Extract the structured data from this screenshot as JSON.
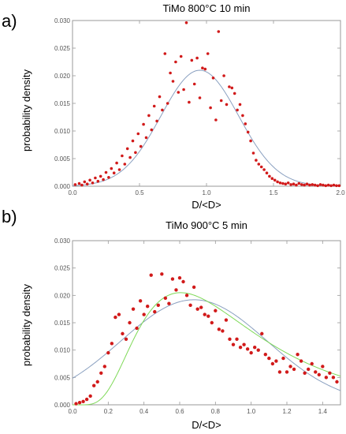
{
  "chart_data": [
    {
      "panel_label": "a)",
      "title": "TiMo 800°C 10 min",
      "type": "scatter",
      "xlabel": "D/<D>",
      "ylabel": "probability density",
      "xlim": [
        0,
        2.0
      ],
      "ylim": [
        0,
        0.03
      ],
      "xticks": [
        0.0,
        0.5,
        1.0,
        1.5,
        2.0
      ],
      "yticks": [
        0.0,
        0.005,
        0.01,
        0.015,
        0.02,
        0.025,
        0.03
      ],
      "xtick_labels": [
        "0.0",
        "0.5",
        "1.0",
        "1.5",
        "2.0"
      ],
      "ytick_labels": [
        "0.000",
        "0.005",
        "0.010",
        "0.015",
        "0.020",
        "0.025",
        "0.030"
      ],
      "series": [
        {
          "kind": "points",
          "color": "#d11a1a",
          "x": [
            0.02,
            0.05,
            0.07,
            0.09,
            0.11,
            0.13,
            0.15,
            0.17,
            0.19,
            0.21,
            0.23,
            0.25,
            0.27,
            0.29,
            0.31,
            0.33,
            0.35,
            0.37,
            0.39,
            0.41,
            0.43,
            0.45,
            0.47,
            0.49,
            0.51,
            0.53,
            0.55,
            0.57,
            0.59,
            0.61,
            0.63,
            0.65,
            0.67,
            0.69,
            0.71,
            0.73,
            0.75,
            0.77,
            0.79,
            0.81,
            0.83,
            0.85,
            0.87,
            0.89,
            0.91,
            0.93,
            0.95,
            0.97,
            0.99,
            1.01,
            1.03,
            1.05,
            1.07,
            1.09,
            1.11,
            1.13,
            1.15,
            1.17,
            1.19,
            1.21,
            1.23,
            1.25,
            1.27,
            1.29,
            1.31,
            1.33,
            1.35,
            1.37,
            1.39,
            1.41,
            1.43,
            1.45,
            1.47,
            1.49,
            1.51,
            1.53,
            1.55,
            1.57,
            1.59,
            1.61,
            1.63,
            1.65,
            1.67,
            1.69,
            1.71,
            1.73,
            1.75,
            1.77,
            1.79,
            1.81,
            1.83,
            1.85,
            1.87,
            1.89,
            1.91,
            1.93,
            1.95,
            1.97,
            1.99
          ],
          "y": [
            0.0003,
            0.0005,
            0.0002,
            0.0008,
            0.0004,
            0.0011,
            0.0006,
            0.0015,
            0.0009,
            0.0018,
            0.0012,
            0.0025,
            0.0016,
            0.0032,
            0.0024,
            0.0042,
            0.003,
            0.0055,
            0.004,
            0.0068,
            0.0052,
            0.0082,
            0.0061,
            0.0095,
            0.0072,
            0.0112,
            0.0088,
            0.0128,
            0.0102,
            0.0145,
            0.0118,
            0.0162,
            0.0138,
            0.024,
            0.015,
            0.0205,
            0.019,
            0.0225,
            0.017,
            0.0235,
            0.0175,
            0.0296,
            0.0152,
            0.0228,
            0.0185,
            0.0232,
            0.016,
            0.0214,
            0.0212,
            0.024,
            0.0142,
            0.0196,
            0.012,
            0.028,
            0.0155,
            0.02,
            0.0148,
            0.018,
            0.0178,
            0.0168,
            0.0138,
            0.0148,
            0.0128,
            0.0113,
            0.0098,
            0.0082,
            0.006,
            0.0047,
            0.004,
            0.0035,
            0.003,
            0.0024,
            0.0018,
            0.0014,
            0.0011,
            0.0008,
            0.0006,
            0.0005,
            0.0004,
            0.0006,
            0.0003,
            0.0004,
            0.0002,
            0.0005,
            0.0003,
            0.0002,
            0.0004,
            0.0002,
            0.0003,
            0.0002,
            0.0001,
            0.0003,
            0.0002,
            0.0001,
            0.0002,
            0.0001,
            0.0002,
            0.0001,
            0.0001
          ]
        },
        {
          "kind": "curve",
          "color": "#8aa0c0",
          "function": "gaussian",
          "amplitude": 0.021,
          "mean": 0.95,
          "sigma": 0.29
        }
      ]
    },
    {
      "panel_label": "b)",
      "title": "TiMo 900°C 5 min",
      "type": "scatter",
      "xlabel": "D/<D>",
      "ylabel": "probability density",
      "xlim": [
        0,
        1.5
      ],
      "ylim": [
        0,
        0.03
      ],
      "xticks": [
        0.0,
        0.2,
        0.4,
        0.6,
        0.8,
        1.0,
        1.2,
        1.4
      ],
      "yticks": [
        0.0,
        0.005,
        0.01,
        0.015,
        0.02,
        0.025,
        0.03
      ],
      "xtick_labels": [
        "0.0",
        "0.2",
        "0.4",
        "0.6",
        "0.8",
        "1.0",
        "1.2",
        "1.4"
      ],
      "ytick_labels": [
        "0.000",
        "0.005",
        "0.010",
        "0.015",
        "0.020",
        "0.025",
        "0.030"
      ],
      "series": [
        {
          "kind": "points",
          "color": "#d11a1a",
          "x": [
            0.02,
            0.04,
            0.06,
            0.08,
            0.1,
            0.12,
            0.14,
            0.16,
            0.18,
            0.2,
            0.22,
            0.24,
            0.26,
            0.28,
            0.3,
            0.32,
            0.34,
            0.36,
            0.38,
            0.4,
            0.42,
            0.44,
            0.46,
            0.48,
            0.5,
            0.52,
            0.54,
            0.56,
            0.58,
            0.6,
            0.62,
            0.64,
            0.66,
            0.68,
            0.7,
            0.72,
            0.74,
            0.76,
            0.78,
            0.8,
            0.82,
            0.84,
            0.86,
            0.88,
            0.9,
            0.92,
            0.94,
            0.96,
            0.98,
            1.0,
            1.02,
            1.04,
            1.06,
            1.08,
            1.1,
            1.12,
            1.14,
            1.16,
            1.18,
            1.2,
            1.22,
            1.24,
            1.26,
            1.28,
            1.3,
            1.32,
            1.34,
            1.36,
            1.38,
            1.4,
            1.42,
            1.44,
            1.46,
            1.48
          ],
          "y": [
            0.0002,
            0.0004,
            0.0006,
            0.001,
            0.0016,
            0.0035,
            0.0042,
            0.0058,
            0.007,
            0.0095,
            0.0112,
            0.016,
            0.0165,
            0.013,
            0.012,
            0.015,
            0.0175,
            0.014,
            0.019,
            0.0165,
            0.018,
            0.0237,
            0.017,
            0.0182,
            0.0239,
            0.0195,
            0.0185,
            0.023,
            0.021,
            0.0232,
            0.0225,
            0.02,
            0.0182,
            0.0215,
            0.0175,
            0.0178,
            0.0165,
            0.0162,
            0.015,
            0.0172,
            0.0138,
            0.0135,
            0.0155,
            0.012,
            0.011,
            0.012,
            0.0105,
            0.011,
            0.0102,
            0.0095,
            0.0105,
            0.01,
            0.013,
            0.0092,
            0.0085,
            0.0075,
            0.008,
            0.006,
            0.0085,
            0.006,
            0.007,
            0.0065,
            0.0092,
            0.008,
            0.0058,
            0.0065,
            0.0075,
            0.006,
            0.0055,
            0.007,
            0.005,
            0.0058,
            0.005,
            0.0042
          ]
        },
        {
          "kind": "curve",
          "color": "#8aa0c0",
          "function": "gaussian",
          "amplitude": 0.0192,
          "mean": 0.68,
          "sigma": 0.41
        },
        {
          "kind": "curve",
          "color": "#7ed957",
          "function": "lognormal",
          "amplitude": 0.0193,
          "mode": 0.5,
          "mu": -0.2,
          "s": 0.55
        }
      ]
    }
  ]
}
